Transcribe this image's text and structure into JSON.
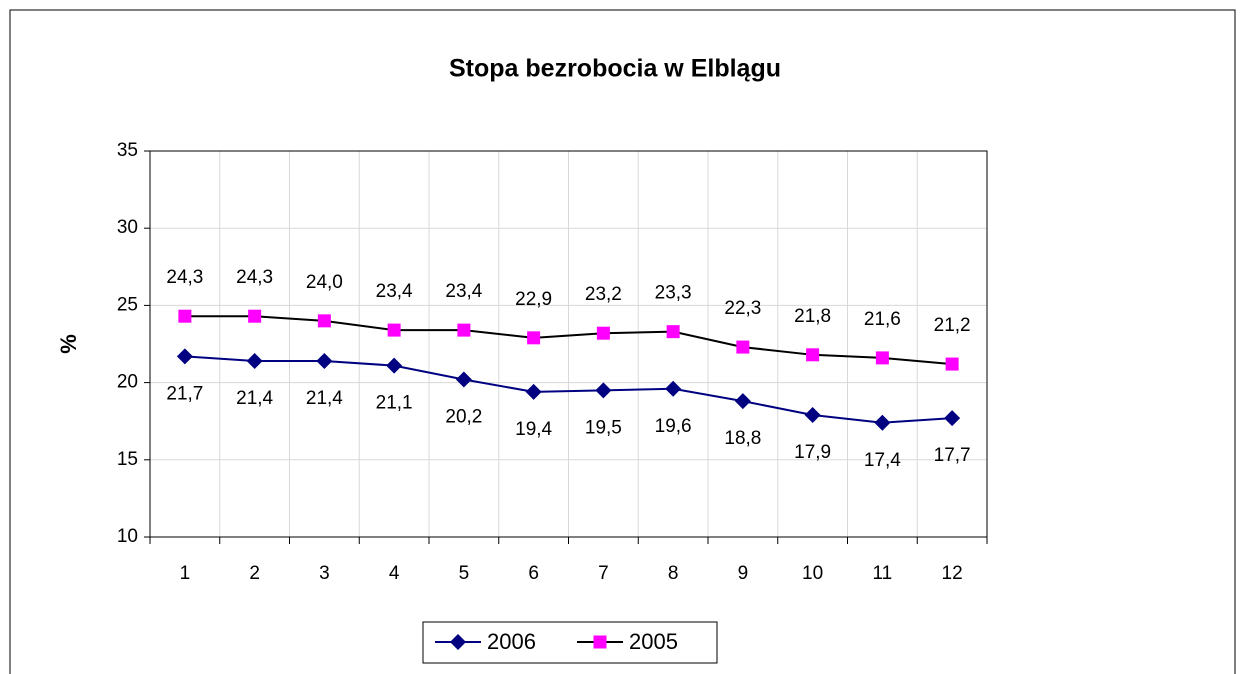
{
  "chart_data": {
    "type": "line",
    "title": "Stopa bezrobocia w Elblągu",
    "y_label": "%",
    "categories": [
      "1",
      "2",
      "3",
      "4",
      "5",
      "6",
      "7",
      "8",
      "9",
      "10",
      "11",
      "12"
    ],
    "series": [
      {
        "name": "2006",
        "color": "#000080",
        "marker_color": "#000080",
        "marker": "diamond",
        "label_position": "below",
        "values": [
          21.7,
          21.4,
          21.4,
          21.1,
          20.2,
          19.4,
          19.5,
          19.6,
          18.8,
          17.9,
          17.4,
          17.7
        ],
        "value_labels": [
          "21,7",
          "21,4",
          "21,4",
          "21,1",
          "20,2",
          "19,4",
          "19,5",
          "19,6",
          "18,8",
          "17,9",
          "17,4",
          "17,7"
        ]
      },
      {
        "name": "2005",
        "color": "#000000",
        "marker_color": "#ff00ff",
        "marker": "square",
        "label_position": "above",
        "values": [
          24.3,
          24.3,
          24.0,
          23.4,
          23.4,
          22.9,
          23.2,
          23.3,
          22.3,
          21.8,
          21.6,
          21.2
        ],
        "value_labels": [
          "24,3",
          "24,3",
          "24,0",
          "23,4",
          "23,4",
          "22,9",
          "23,2",
          "23,3",
          "22,3",
          "21,8",
          "21,6",
          "21,2"
        ]
      }
    ],
    "ylim": [
      10,
      35
    ],
    "yticks": [
      10,
      15,
      20,
      25,
      30,
      35
    ],
    "grid": true,
    "legend": "bottom"
  }
}
